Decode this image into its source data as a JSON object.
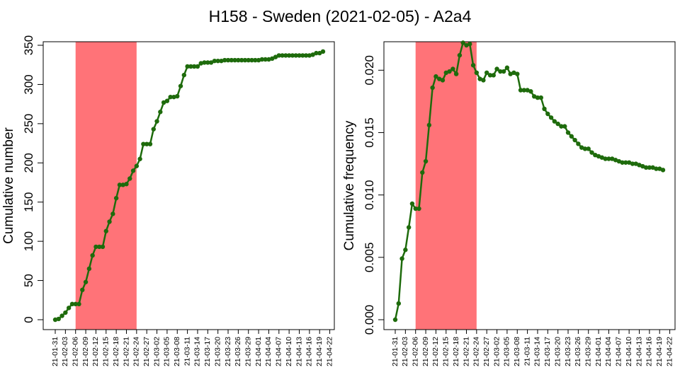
{
  "title": "H158 - Sweden (2021-02-05) - A2a4",
  "colors": {
    "line": "#1e6b0c",
    "highlight": "#ff7378",
    "axis": "#000000"
  },
  "x_labels": [
    "21-01-31",
    "21-02-03",
    "21-02-06",
    "21-02-09",
    "21-02-12",
    "21-02-15",
    "21-02-18",
    "21-02-21",
    "21-02-24",
    "21-02-27",
    "21-03-02",
    "21-03-05",
    "21-03-08",
    "21-03-11",
    "21-03-14",
    "21-03-17",
    "21-03-20",
    "21-03-23",
    "21-03-26",
    "21-03-29",
    "21-04-01",
    "21-04-04",
    "21-04-07",
    "21-04-10",
    "21-04-13",
    "21-04-16",
    "21-04-19",
    "21-04-22"
  ],
  "chart_data": [
    {
      "type": "line",
      "ylabel": "Cumulative number",
      "ylim": [
        0,
        350
      ],
      "yticks": [
        0,
        50,
        100,
        150,
        200,
        250,
        300,
        350
      ],
      "highlight_range": [
        "21-02-06",
        "21-02-24"
      ],
      "x_start": "21-01-31",
      "y": [
        0,
        1,
        5,
        9,
        15,
        20,
        20,
        20,
        38,
        48,
        65,
        82,
        93,
        93,
        93,
        113,
        125,
        135,
        155,
        172,
        172,
        173,
        180,
        190,
        196,
        205,
        224,
        224,
        224,
        243,
        253,
        265,
        277,
        279,
        284,
        284,
        285,
        298,
        312,
        323,
        323,
        323,
        323,
        327,
        328,
        328,
        328,
        330,
        330,
        330,
        331,
        331,
        331,
        331,
        331,
        331,
        331,
        331,
        331,
        331,
        331,
        332,
        332,
        332,
        333,
        335,
        337,
        337,
        337,
        337,
        337,
        337,
        337,
        337,
        337,
        337,
        338,
        340,
        340,
        342
      ]
    },
    {
      "type": "line",
      "ylabel": "Cumulative frequency",
      "ylim": [
        0,
        0.022
      ],
      "yticks": [
        0,
        0.005,
        0.01,
        0.015,
        0.02
      ],
      "ytick_labels": [
        "0.000",
        "0.005",
        "0.010",
        "0.015",
        "0.020"
      ],
      "highlight_range": [
        "21-02-06",
        "21-02-24"
      ],
      "x_start": "21-01-31",
      "y": [
        0,
        0.0013,
        0.0049,
        0.0056,
        0.0074,
        0.0093,
        0.0089,
        0.0089,
        0.0118,
        0.0127,
        0.0156,
        0.0186,
        0.0195,
        0.0193,
        0.0192,
        0.0198,
        0.0199,
        0.0201,
        0.0197,
        0.0212,
        0.0222,
        0.022,
        0.0221,
        0.0204,
        0.0198,
        0.0193,
        0.0192,
        0.0198,
        0.0196,
        0.0196,
        0.0201,
        0.0199,
        0.0199,
        0.0202,
        0.0197,
        0.0198,
        0.0197,
        0.0184,
        0.0184,
        0.0184,
        0.0183,
        0.0179,
        0.0178,
        0.0178,
        0.0169,
        0.0165,
        0.0162,
        0.0159,
        0.0157,
        0.0155,
        0.0155,
        0.015,
        0.0147,
        0.0144,
        0.0141,
        0.0138,
        0.0137,
        0.0137,
        0.0134,
        0.0132,
        0.0131,
        0.013,
        0.0129,
        0.0129,
        0.0129,
        0.0128,
        0.0127,
        0.0126,
        0.0126,
        0.0126,
        0.0125,
        0.0125,
        0.0124,
        0.0123,
        0.0122,
        0.0122,
        0.0122,
        0.0121,
        0.0121,
        0.012
      ]
    }
  ]
}
